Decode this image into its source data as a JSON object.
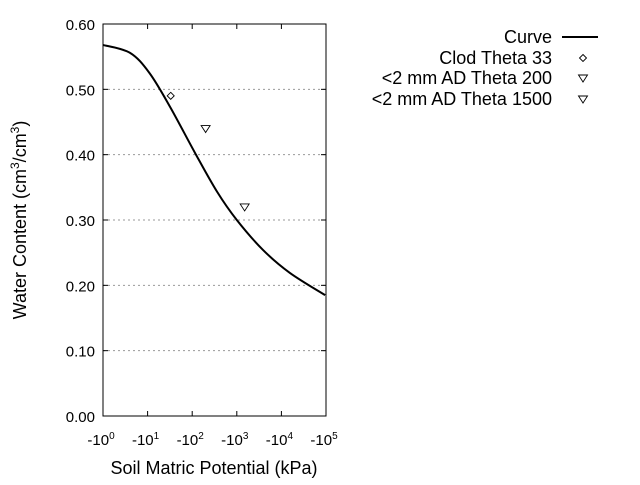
{
  "chart_data": {
    "type": "line",
    "title": "",
    "xlabel": "Soil Matric Potential (kPa)",
    "ylabel_main": "Water Content (cm",
    "ylabel_sup1": "3",
    "ylabel_mid": "/cm",
    "ylabel_sup2": "3",
    "ylabel_end": ")",
    "x_scale": "log (negative potential)",
    "xlim": [
      -1,
      -100000
    ],
    "ylim": [
      0,
      0.6
    ],
    "x_ticks": [
      {
        "base": "-10",
        "exp": "0"
      },
      {
        "base": "-10",
        "exp": "1"
      },
      {
        "base": "-10",
        "exp": "2"
      },
      {
        "base": "-10",
        "exp": "3"
      },
      {
        "base": "-10",
        "exp": "4"
      },
      {
        "base": "-10",
        "exp": "5"
      }
    ],
    "y_ticks": [
      "0.00",
      "0.10",
      "0.20",
      "0.30",
      "0.40",
      "0.50",
      "0.60"
    ],
    "grid": "horizontal dotted",
    "legend_position": "right",
    "series": [
      {
        "name": "Curve",
        "kind": "line",
        "color": "#000000",
        "x": [
          -1,
          -4,
          -11,
          -32,
          -115,
          -363,
          -1000,
          -3890,
          -15500,
          -95500
        ],
        "y": [
          0.568,
          0.556,
          0.525,
          0.473,
          0.403,
          0.343,
          0.3,
          0.254,
          0.219,
          0.185
        ]
      },
      {
        "name": "Clod Theta 33",
        "kind": "point",
        "marker": "diamond",
        "x": [
          -33
        ],
        "y": [
          0.49
        ]
      },
      {
        "name": "<2 mm AD Theta 200",
        "kind": "point",
        "marker": "triangle-down",
        "x": [
          -200
        ],
        "y": [
          0.44
        ]
      },
      {
        "name": "<2 mm AD Theta 1500",
        "kind": "point",
        "marker": "triangle-down",
        "x": [
          -1500
        ],
        "y": [
          0.32
        ]
      }
    ]
  }
}
